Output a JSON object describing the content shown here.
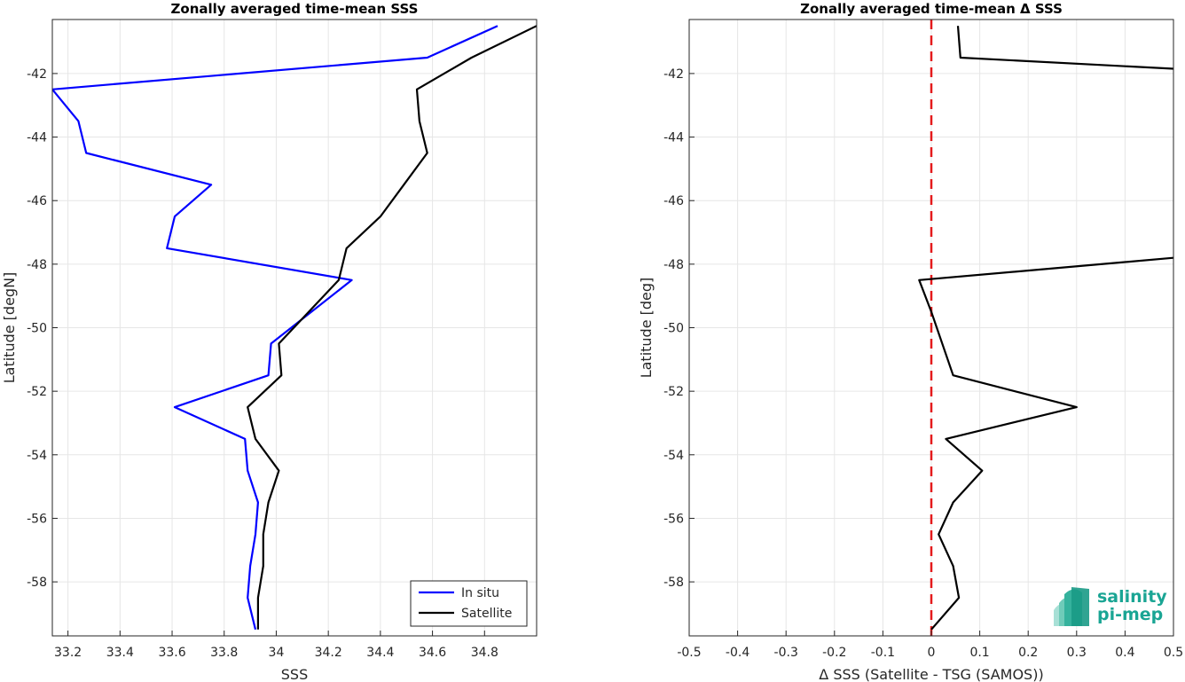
{
  "chart_data": [
    {
      "type": "line",
      "title": "Zonally averaged time-mean SSS",
      "xlabel": "SSS",
      "ylabel": "Latitude [degN]",
      "xlim": [
        33.14,
        35.0
      ],
      "ylim": [
        -59.7,
        -40.3
      ],
      "xticks": [
        "33.2",
        "33.4",
        "33.6",
        "33.8",
        "34",
        "34.2",
        "34.4",
        "34.6",
        "34.8"
      ],
      "yticks": [
        "-42",
        "-44",
        "-46",
        "-48",
        "-50",
        "-52",
        "-54",
        "-56",
        "-58"
      ],
      "grid": true,
      "legend_location": "bottom-right",
      "series": [
        {
          "name": "In situ",
          "color": "#0000ff",
          "x": [
            34.85,
            34.58,
            33.14,
            33.24,
            33.27,
            33.75,
            33.61,
            33.58,
            34.29,
            33.98,
            33.97,
            33.61,
            33.88,
            33.89,
            33.93,
            33.92,
            33.9,
            33.89,
            33.92
          ],
          "y": [
            -40.5,
            -41.5,
            -42.5,
            -43.5,
            -44.5,
            -45.5,
            -46.5,
            -47.5,
            -48.5,
            -50.5,
            -51.5,
            -52.5,
            -53.5,
            -54.5,
            -55.5,
            -56.5,
            -57.5,
            -58.5,
            -59.5
          ]
        },
        {
          "name": "Satellite",
          "color": "#000000",
          "x": [
            35.0,
            34.75,
            34.54,
            34.55,
            34.58,
            34.49,
            34.4,
            34.27,
            34.24,
            34.01,
            34.02,
            33.89,
            33.92,
            34.01,
            33.97,
            33.95,
            33.95,
            33.93,
            33.93
          ],
          "y": [
            -40.5,
            -41.5,
            -42.5,
            -43.5,
            -44.5,
            -45.5,
            -46.5,
            -47.5,
            -48.5,
            -50.5,
            -51.5,
            -52.5,
            -53.5,
            -54.5,
            -55.5,
            -56.5,
            -57.5,
            -58.5,
            -59.5
          ]
        }
      ]
    },
    {
      "type": "line",
      "title": "Zonally averaged time-mean Δ SSS",
      "xlabel": "Δ SSS (Satellite - TSG (SAMOS))",
      "ylabel": "Latitude [deg]",
      "xlim": [
        -0.5,
        0.5
      ],
      "ylim": [
        -59.7,
        -40.3
      ],
      "xticks": [
        "-0.5",
        "-0.4",
        "-0.3",
        "-0.2",
        "-0.1",
        "0",
        "0.1",
        "0.2",
        "0.3",
        "0.4",
        "0.5"
      ],
      "yticks": [
        "-42",
        "-44",
        "-46",
        "-48",
        "-50",
        "-52",
        "-54",
        "-56",
        "-58"
      ],
      "grid": true,
      "reference_line": {
        "x": 0,
        "color": "#e41a1c",
        "style": "dashed"
      },
      "series": [
        {
          "color": "#000000",
          "segments": [
            {
              "x": [
                0.055,
                0.06,
                0.5
              ],
              "y": [
                -40.5,
                -41.5,
                -41.85
              ]
            },
            {
              "x": [
                0.5,
                -0.025,
                0.0,
                0.045,
                0.3,
                0.03,
                0.105,
                0.045,
                0.015,
                0.045,
                0.057,
                0.0
              ],
              "y": [
                -47.8,
                -48.5,
                -49.5,
                -51.5,
                -52.5,
                -53.5,
                -54.5,
                -55.5,
                -56.5,
                -57.5,
                -58.5,
                -59.5
              ]
            }
          ]
        }
      ]
    }
  ],
  "logo": {
    "line1": "salinity",
    "line2": "pi-mep",
    "color": "#1aa594"
  },
  "colors": {
    "grid": "#e6e6e6",
    "axis": "#262626"
  }
}
